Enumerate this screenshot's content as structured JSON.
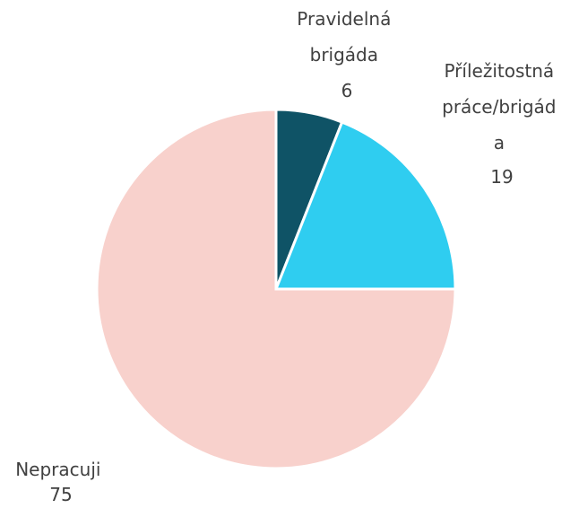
{
  "chart_data": {
    "type": "pie",
    "title": "",
    "slices": [
      {
        "label": "Pravidelná brigáda",
        "label_lines": [
          "Pravidelná",
          "brigáda"
        ],
        "value": 6,
        "value_text": "6",
        "color": "#0f5366"
      },
      {
        "label": "Příležitostná práce/brigáda",
        "label_lines": [
          "Příležitostná",
          "práce/brigád",
          "a"
        ],
        "value": 19,
        "value_text": "19",
        "color": "#2fcdf0"
      },
      {
        "label": "Nepracuji",
        "label_lines": [
          "Nepracuji"
        ],
        "value": 75,
        "value_text": "75",
        "color": "#f8d1cc"
      }
    ],
    "start_angle_deg": 0,
    "direction": "clockwise",
    "legend": "none",
    "background": "#ffffff"
  }
}
